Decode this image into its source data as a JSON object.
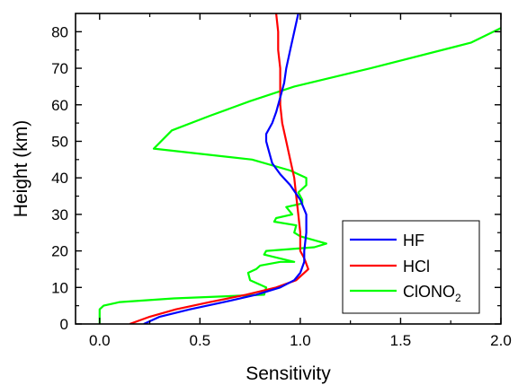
{
  "chart_data": {
    "type": "line",
    "title": "",
    "xlabel": "Sensitivity",
    "ylabel": "Height (km)",
    "xlim": [
      -0.12,
      2.0
    ],
    "ylim": [
      0,
      85
    ],
    "xticks": [
      "0.0",
      "0.5",
      "1.0",
      "1.5",
      "2.0"
    ],
    "yticks": [
      "0",
      "10",
      "20",
      "30",
      "40",
      "50",
      "60",
      "70",
      "80"
    ],
    "grid": false,
    "legend_position": "bottom-right",
    "series": [
      {
        "name": "HF",
        "color": "#0000ff",
        "points": [
          [
            0.22,
            0
          ],
          [
            0.3,
            2
          ],
          [
            0.45,
            4
          ],
          [
            0.62,
            6
          ],
          [
            0.78,
            8
          ],
          [
            0.9,
            10
          ],
          [
            0.97,
            12
          ],
          [
            1.0,
            14
          ],
          [
            1.02,
            17
          ],
          [
            1.02,
            20
          ],
          [
            1.03,
            25
          ],
          [
            1.03,
            30
          ],
          [
            1.0,
            34
          ],
          [
            0.95,
            38
          ],
          [
            0.9,
            41
          ],
          [
            0.86,
            44
          ],
          [
            0.84,
            48
          ],
          [
            0.83,
            50
          ],
          [
            0.83,
            52
          ],
          [
            0.86,
            55
          ],
          [
            0.88,
            58
          ],
          [
            0.9,
            62
          ],
          [
            0.92,
            66
          ],
          [
            0.93,
            70
          ],
          [
            0.95,
            75
          ],
          [
            0.97,
            80
          ],
          [
            0.99,
            85
          ]
        ]
      },
      {
        "name": "HCl",
        "color": "#ff0000",
        "points": [
          [
            0.15,
            0
          ],
          [
            0.25,
            2
          ],
          [
            0.38,
            4
          ],
          [
            0.55,
            6
          ],
          [
            0.73,
            8
          ],
          [
            0.88,
            10
          ],
          [
            0.98,
            12
          ],
          [
            1.04,
            15
          ],
          [
            1.02,
            18
          ],
          [
            1.0,
            20
          ],
          [
            1.0,
            25
          ],
          [
            0.99,
            30
          ],
          [
            0.98,
            35
          ],
          [
            0.97,
            40
          ],
          [
            0.95,
            45
          ],
          [
            0.93,
            50
          ],
          [
            0.91,
            55
          ],
          [
            0.9,
            60
          ],
          [
            0.9,
            65
          ],
          [
            0.9,
            70
          ],
          [
            0.89,
            75
          ],
          [
            0.89,
            80
          ],
          [
            0.88,
            85
          ]
        ]
      },
      {
        "name": "ClONO2",
        "color": "#00ff00",
        "points": [
          [
            0.0,
            0
          ],
          [
            0.0,
            4
          ],
          [
            0.02,
            5
          ],
          [
            0.1,
            6
          ],
          [
            0.37,
            7
          ],
          [
            0.82,
            8
          ],
          [
            0.83,
            10
          ],
          [
            0.75,
            12
          ],
          [
            0.74,
            14
          ],
          [
            0.78,
            15
          ],
          [
            0.8,
            16
          ],
          [
            0.9,
            17
          ],
          [
            0.97,
            17
          ],
          [
            0.82,
            19
          ],
          [
            0.83,
            20
          ],
          [
            1.07,
            21
          ],
          [
            1.13,
            22
          ],
          [
            1.0,
            24
          ],
          [
            0.97,
            25
          ],
          [
            0.98,
            27
          ],
          [
            0.87,
            28
          ],
          [
            0.88,
            29
          ],
          [
            0.96,
            30
          ],
          [
            0.93,
            32
          ],
          [
            1.01,
            33
          ],
          [
            1.01,
            34
          ],
          [
            0.99,
            36
          ],
          [
            1.03,
            38
          ],
          [
            1.03,
            40
          ],
          [
            0.95,
            42
          ],
          [
            0.76,
            45
          ],
          [
            0.27,
            48
          ],
          [
            0.36,
            53
          ],
          [
            0.55,
            57
          ],
          [
            0.75,
            61
          ],
          [
            0.97,
            65
          ],
          [
            1.35,
            70
          ],
          [
            1.85,
            77
          ],
          [
            2.0,
            81
          ]
        ]
      }
    ]
  }
}
